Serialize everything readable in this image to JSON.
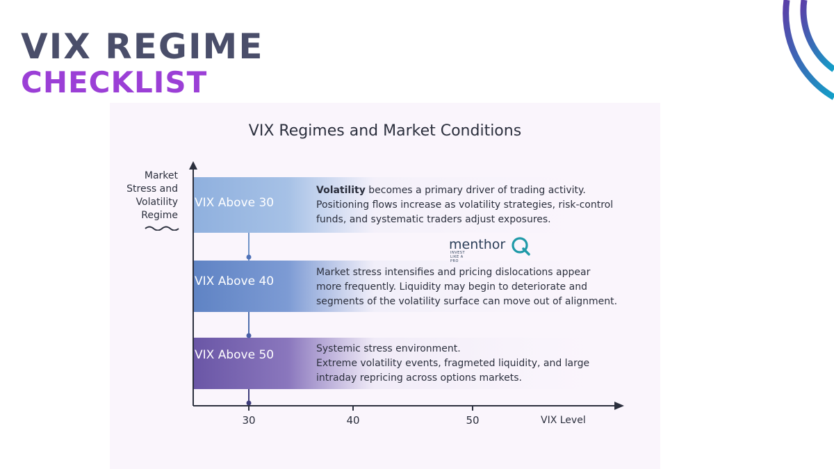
{
  "slide": {
    "title_line1": "VIX REGIME",
    "title_line2": "CHECKLIST"
  },
  "diagram": {
    "title": "VIX Regimes and Market Conditions",
    "y_axis_label_lines": [
      "Market",
      "Stress and",
      "Volatility",
      "Regime"
    ],
    "x_axis_label": "VIX Level",
    "x_ticks": [
      "30",
      "40",
      "50"
    ],
    "regimes": [
      {
        "label": "VIX Above 30",
        "lead": "Volatility",
        "lines": [
          " becomes a primary driver of trading activity.",
          "Positioning flows increase as volatility strategies, risk-control",
          "funds, and systematic traders adjust exposures."
        ],
        "color": "#8fb0de"
      },
      {
        "label": "VIX Above 40",
        "lead": "",
        "lines": [
          "Market stress intensifies and pricing dislocations appear",
          "more frequently. Liquidity may begin to deteriorate and",
          "segments of the volatility surface can move out of alignment."
        ],
        "color": "#5f83c4"
      },
      {
        "label": "VIX Above 50",
        "lead": "",
        "lines": [
          "Systemic stress environment.",
          "Extreme volatility events, fragmeted liquidity, and large",
          "intraday repricing across options markets."
        ],
        "color": "#6a56a6"
      }
    ]
  },
  "logo": {
    "name": "menthor",
    "tagline": "INVEST LIKE A PRO",
    "accent_color": "#1f9aa8"
  },
  "colors": {
    "title_primary": "#4a4e6a",
    "title_accent": "#9b3fd6",
    "arc_start": "#5a3fa8",
    "arc_end": "#12a0c8"
  }
}
